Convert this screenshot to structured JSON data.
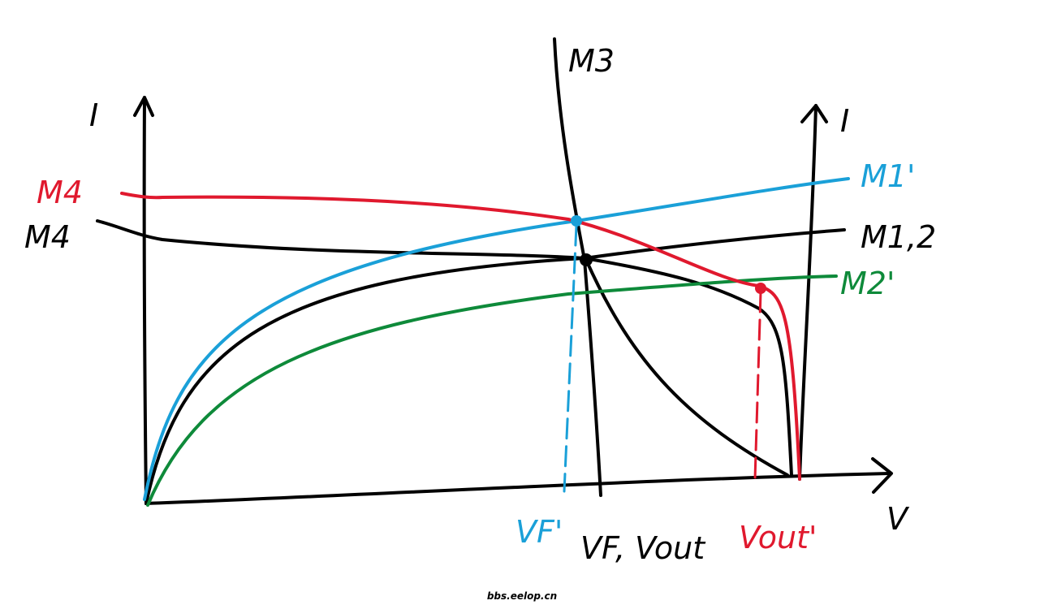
{
  "labels": {
    "m3": "M3",
    "i_left": "I",
    "i_right": "I",
    "m4_red": "M4",
    "m4_black": "M4",
    "m1_prime": "M1'",
    "m12": "M1,2",
    "m2_prime": "M2'",
    "v_axis": "V",
    "vf_prime": "VF'",
    "vf_vout": "VF, Vout",
    "vout_prime": "Vout'"
  },
  "watermark": "bbs.eelop.cn"
}
